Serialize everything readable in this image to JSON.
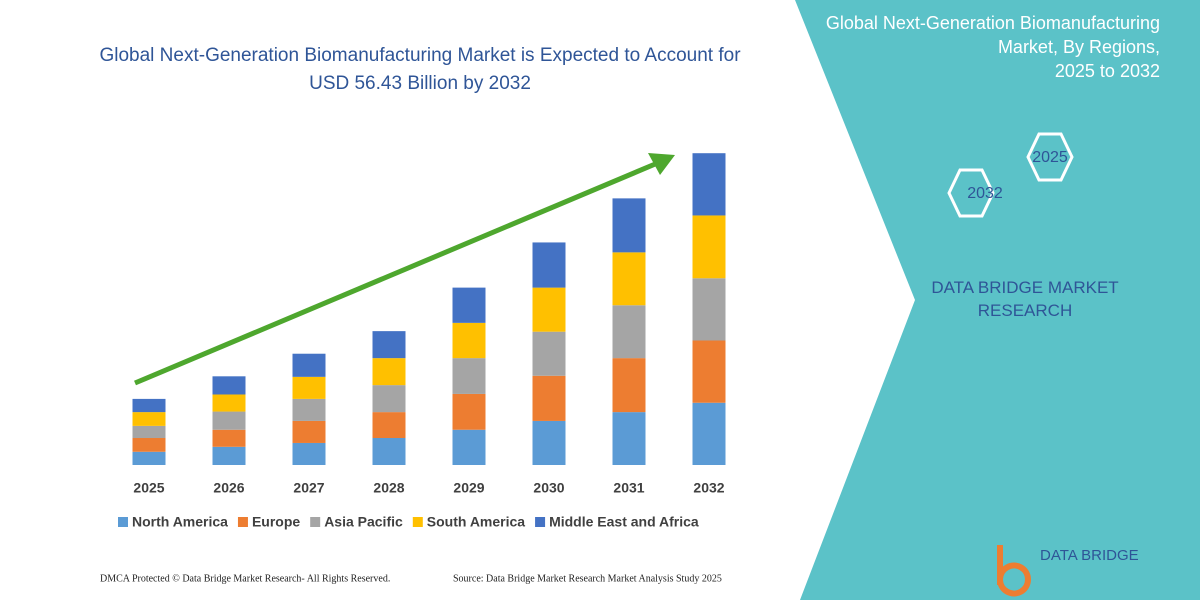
{
  "chart_data": {
    "type": "stacked_bar",
    "title": "Global Next-Generation Biomanufacturing Market is Expected to Account for USD 56.43 Billion by 2032",
    "categories": [
      "2025",
      "2026",
      "2027",
      "2028",
      "2029",
      "2030",
      "2031",
      "2032"
    ],
    "series": [
      {
        "name": "North America",
        "color": "#5b9bd5",
        "values": [
          2.4,
          3.3,
          4.0,
          4.9,
          6.4,
          8.0,
          9.6,
          11.3
        ]
      },
      {
        "name": "Europe",
        "color": "#ed7d31",
        "values": [
          2.5,
          3.1,
          4.0,
          4.7,
          6.5,
          8.2,
          9.8,
          11.3
        ]
      },
      {
        "name": "Asia Pacific",
        "color": "#a5a5a5",
        "values": [
          2.2,
          3.3,
          4.0,
          4.9,
          6.5,
          8.0,
          9.6,
          11.3
        ]
      },
      {
        "name": "South America",
        "color": "#ffc000",
        "values": [
          2.5,
          3.1,
          4.0,
          4.9,
          6.4,
          8.0,
          9.6,
          11.4
        ]
      },
      {
        "name": "Middle East and Africa",
        "color": "#4472c4",
        "values": [
          2.4,
          3.3,
          4.2,
          4.9,
          6.4,
          8.2,
          9.8,
          11.3
        ]
      }
    ],
    "ylim": [
      0,
      57
    ]
  },
  "panel": {
    "title": "Global Next-Generation Biomanufacturing Market, By Regions, 2025 to 2032",
    "hex_end": "2032",
    "hex_start": "2025",
    "brand": "DATA BRIDGE MARKET RESEARCH"
  },
  "footer": {
    "left": "DMCA Protected © Data Bridge Market Research-  All Rights Reserved.",
    "right": "Source: Data Bridge Market Research  Market Analysis Study 2025",
    "logo": "DATA BRIDGE"
  }
}
